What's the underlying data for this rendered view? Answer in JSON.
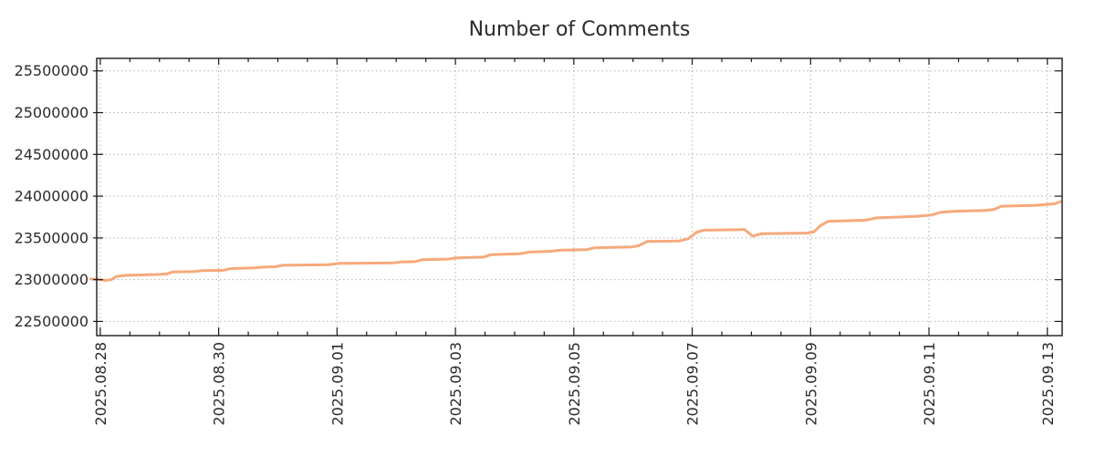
{
  "chart_data": {
    "type": "line",
    "title": "Number of Comments",
    "legend_position": "none",
    "grid": "dotted",
    "background_color": "#ffffff",
    "line_color": "#f6a97c",
    "line_width": 3,
    "grid_color": "#b0b0b0",
    "axis_color": "#1a1a1a",
    "text_color": "#2b2b2b",
    "x_axis": {
      "unit": "date",
      "tick_labels": [
        "2025.08.28",
        "2025.08.30",
        "2025.09.01",
        "2025.09.03",
        "2025.09.05",
        "2025.09.07",
        "2025.09.09",
        "2025.09.11",
        "2025.09.13"
      ],
      "tick_days": [
        0,
        2,
        4,
        6,
        8,
        10,
        12,
        14,
        16
      ],
      "minor_tick_step_days": 0.5,
      "range_days": [
        -0.06,
        16.25
      ],
      "label_rotation_deg": 90
    },
    "y_axis": {
      "tick_values": [
        22500000,
        23000000,
        23500000,
        24000000,
        24500000,
        25000000,
        25500000
      ],
      "tick_labels": [
        "22500000",
        "23000000",
        "23500000",
        "24000000",
        "24500000",
        "25000000",
        "25500000"
      ],
      "range": [
        22330000,
        25650000
      ]
    },
    "series": [
      {
        "name": "comments",
        "x_days": [
          -0.18,
          -0.05,
          0.08,
          0.18,
          0.28,
          0.45,
          0.95,
          1.12,
          1.22,
          1.58,
          1.72,
          2.08,
          2.2,
          2.6,
          2.75,
          2.95,
          3.08,
          3.85,
          4.05,
          4.95,
          5.08,
          5.32,
          5.44,
          5.88,
          6.03,
          6.48,
          6.6,
          7.08,
          7.25,
          7.62,
          7.76,
          8.22,
          8.35,
          8.98,
          9.1,
          9.24,
          9.78,
          9.93,
          10.08,
          10.2,
          10.78,
          10.88,
          11.02,
          11.17,
          11.93,
          12.05,
          12.17,
          12.3,
          12.92,
          13.12,
          13.78,
          14.05,
          14.2,
          14.45,
          14.95,
          15.1,
          15.22,
          15.78,
          15.95,
          16.12,
          16.24
        ],
        "values": [
          23010000,
          23005000,
          22992000,
          23000000,
          23040000,
          23052000,
          23062000,
          23068000,
          23092000,
          23098000,
          23108000,
          23112000,
          23132000,
          23140000,
          23150000,
          23155000,
          23172000,
          23180000,
          23195000,
          23200000,
          23212000,
          23216000,
          23240000,
          23246000,
          23262000,
          23270000,
          23300000,
          23310000,
          23330000,
          23340000,
          23352000,
          23360000,
          23382000,
          23392000,
          23408000,
          23458000,
          23462000,
          23490000,
          23570000,
          23592000,
          23598000,
          23602000,
          23522000,
          23550000,
          23558000,
          23572000,
          23648000,
          23700000,
          23712000,
          23740000,
          23758000,
          23775000,
          23808000,
          23820000,
          23830000,
          23842000,
          23880000,
          23888000,
          23898000,
          23908000,
          23940000
        ]
      }
    ]
  }
}
